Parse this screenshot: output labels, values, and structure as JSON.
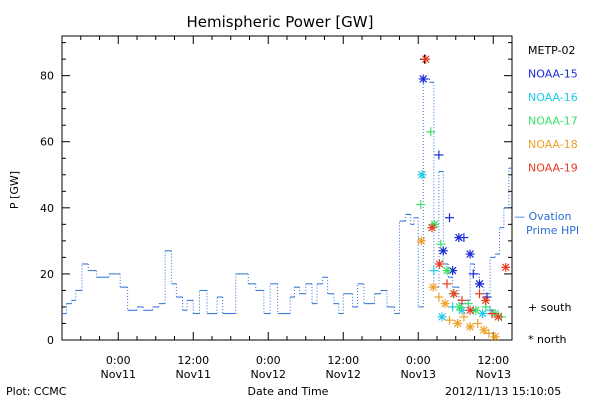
{
  "chart_data": {
    "type": "line",
    "title": "Hemispheric Power [GW]",
    "xlabel": "Date and Time",
    "ylabel": "P [GW]",
    "ylim": [
      0,
      92
    ],
    "xlim_hours_label": "Nov10 19:40 to Nov13 15:10",
    "x_ticks": [
      {
        "hour": 0,
        "line1": "0:00",
        "line2": "Nov11"
      },
      {
        "hour": 12,
        "line1": "12:00",
        "line2": "Nov11"
      },
      {
        "hour": 24,
        "line1": "0:00",
        "line2": "Nov12"
      },
      {
        "hour": 36,
        "line1": "12:00",
        "line2": "Nov12"
      },
      {
        "hour": 48,
        "line1": "0:00",
        "line2": "Nov13"
      },
      {
        "hour": 60,
        "line1": "12:00",
        "line2": "Nov13"
      }
    ],
    "y_ticks": [
      0,
      20,
      40,
      60,
      80
    ],
    "x_min_hour": -9.0,
    "x_max_hour": 63.0,
    "ovation": {
      "name": "Ovation Prime HPI",
      "color": "#2a6fd6",
      "points": [
        [
          -9.0,
          8
        ],
        [
          -8.3,
          11
        ],
        [
          -7.5,
          12
        ],
        [
          -6.8,
          15
        ],
        [
          -5.8,
          23
        ],
        [
          -4.8,
          21
        ],
        [
          -3.5,
          19
        ],
        [
          -1.5,
          20
        ],
        [
          0.3,
          16
        ],
        [
          1.5,
          9
        ],
        [
          3.0,
          10
        ],
        [
          4.0,
          9
        ],
        [
          5.5,
          10
        ],
        [
          6.5,
          11
        ],
        [
          7.5,
          27
        ],
        [
          8.5,
          17
        ],
        [
          9.3,
          13
        ],
        [
          10.3,
          9
        ],
        [
          11.0,
          12
        ],
        [
          12.0,
          8
        ],
        [
          13.0,
          15
        ],
        [
          14.2,
          8
        ],
        [
          15.8,
          13
        ],
        [
          16.7,
          8
        ],
        [
          18.8,
          20
        ],
        [
          20.8,
          17
        ],
        [
          22.0,
          15
        ],
        [
          23.3,
          8
        ],
        [
          24.3,
          17
        ],
        [
          25.5,
          8
        ],
        [
          27.5,
          13
        ],
        [
          28.2,
          16
        ],
        [
          29.0,
          14
        ],
        [
          30.0,
          17
        ],
        [
          31.0,
          11
        ],
        [
          31.8,
          17
        ],
        [
          32.7,
          19
        ],
        [
          33.5,
          14
        ],
        [
          34.5,
          11
        ],
        [
          35.3,
          8
        ],
        [
          36.0,
          14
        ],
        [
          37.5,
          10
        ],
        [
          38.3,
          17
        ],
        [
          39.3,
          11
        ],
        [
          41.0,
          14
        ],
        [
          42.0,
          15
        ],
        [
          43.0,
          10
        ],
        [
          44.2,
          8
        ],
        [
          45.0,
          36
        ],
        [
          46.0,
          38
        ],
        [
          46.8,
          35
        ],
        [
          47.3,
          37
        ],
        [
          48.0,
          10
        ],
        [
          48.8,
          79
        ],
        [
          49.8,
          78
        ],
        [
          50.5,
          16
        ],
        [
          51.3,
          51
        ],
        [
          52.0,
          23
        ],
        [
          52.8,
          19
        ],
        [
          53.5,
          16
        ],
        [
          54.5,
          11
        ],
        [
          55.5,
          12
        ],
        [
          56.3,
          23
        ],
        [
          57.0,
          20
        ],
        [
          57.8,
          17
        ],
        [
          58.5,
          14
        ],
        [
          59.5,
          25
        ],
        [
          60.3,
          26
        ],
        [
          61.0,
          34
        ],
        [
          61.7,
          40
        ],
        [
          62.5,
          52
        ],
        [
          63.0,
          52
        ]
      ]
    },
    "satellites": [
      {
        "name": "METP-02",
        "color": "#000000",
        "points": [
          {
            "h": 49.0,
            "v": 85,
            "m": "+"
          }
        ]
      },
      {
        "name": "NOAA-15",
        "color": "#1a2bd6",
        "points": [
          {
            "h": 48.8,
            "v": 79,
            "m": "*"
          },
          {
            "h": 51.3,
            "v": 56,
            "m": "+"
          },
          {
            "h": 52.0,
            "v": 27,
            "m": "*"
          },
          {
            "h": 53.0,
            "v": 37,
            "m": "+"
          },
          {
            "h": 53.5,
            "v": 21,
            "m": "*"
          },
          {
            "h": 54.5,
            "v": 31,
            "m": "*"
          },
          {
            "h": 55.3,
            "v": 31,
            "m": "+"
          },
          {
            "h": 56.3,
            "v": 26,
            "m": "*"
          },
          {
            "h": 56.8,
            "v": 20,
            "m": "+"
          },
          {
            "h": 57.8,
            "v": 17,
            "m": "*"
          },
          {
            "h": 59.0,
            "v": 13,
            "m": "+"
          }
        ]
      },
      {
        "name": "NOAA-16",
        "color": "#1ec8e6",
        "points": [
          {
            "h": 48.6,
            "v": 50,
            "m": "*"
          },
          {
            "h": 50.5,
            "v": 21,
            "m": "+"
          },
          {
            "h": 51.8,
            "v": 7,
            "m": "*"
          },
          {
            "h": 53.5,
            "v": 10,
            "m": "+"
          },
          {
            "h": 55.0,
            "v": 9,
            "m": "*"
          },
          {
            "h": 56.8,
            "v": 9,
            "m": "+"
          },
          {
            "h": 58.3,
            "v": 8,
            "m": "*"
          },
          {
            "h": 59.5,
            "v": 9,
            "m": "+"
          }
        ]
      },
      {
        "name": "NOAA-17",
        "color": "#3ee06a",
        "points": [
          {
            "h": 48.4,
            "v": 41,
            "m": "+"
          },
          {
            "h": 50.0,
            "v": 63,
            "m": "+"
          },
          {
            "h": 50.6,
            "v": 35,
            "m": "*"
          },
          {
            "h": 51.6,
            "v": 29,
            "m": "+"
          },
          {
            "h": 52.6,
            "v": 21,
            "m": "*"
          },
          {
            "h": 53.6,
            "v": 14,
            "m": "+"
          },
          {
            "h": 54.6,
            "v": 10,
            "m": "*"
          },
          {
            "h": 56.0,
            "v": 11,
            "m": "+"
          },
          {
            "h": 57.2,
            "v": 9,
            "m": "*"
          },
          {
            "h": 58.8,
            "v": 10,
            "m": "+"
          },
          {
            "h": 60.3,
            "v": 8,
            "m": "*"
          },
          {
            "h": 61.3,
            "v": 7,
            "m": "+"
          }
        ]
      },
      {
        "name": "NOAA-18",
        "color": "#f0a028",
        "points": [
          {
            "h": 48.5,
            "v": 30,
            "m": "*"
          },
          {
            "h": 50.4,
            "v": 16,
            "m": "*"
          },
          {
            "h": 51.3,
            "v": 13,
            "m": "+"
          },
          {
            "h": 52.3,
            "v": 11,
            "m": "*"
          },
          {
            "h": 53.0,
            "v": 6,
            "m": "+"
          },
          {
            "h": 54.3,
            "v": 5,
            "m": "*"
          },
          {
            "h": 55.3,
            "v": 7,
            "m": "+"
          },
          {
            "h": 56.3,
            "v": 4,
            "m": "*"
          },
          {
            "h": 57.5,
            "v": 5,
            "m": "+"
          },
          {
            "h": 58.5,
            "v": 3,
            "m": "*"
          },
          {
            "h": 59.3,
            "v": 2,
            "m": "+"
          },
          {
            "h": 60.3,
            "v": 1,
            "m": "*"
          }
        ]
      },
      {
        "name": "NOAA-19",
        "color": "#e63c1e",
        "points": [
          {
            "h": 49.2,
            "v": 85,
            "m": "*"
          },
          {
            "h": 50.2,
            "v": 34,
            "m": "*"
          },
          {
            "h": 51.4,
            "v": 23,
            "m": "*"
          },
          {
            "h": 52.6,
            "v": 17,
            "m": "+"
          },
          {
            "h": 53.7,
            "v": 14,
            "m": "*"
          },
          {
            "h": 55.0,
            "v": 12,
            "m": "+"
          },
          {
            "h": 56.3,
            "v": 9,
            "m": "*"
          },
          {
            "h": 57.8,
            "v": 14,
            "m": "+"
          },
          {
            "h": 58.8,
            "v": 12,
            "m": "*"
          },
          {
            "h": 59.8,
            "v": 8,
            "m": "+"
          },
          {
            "h": 60.8,
            "v": 7,
            "m": "*"
          },
          {
            "h": 62.0,
            "v": 22,
            "m": "*"
          }
        ]
      }
    ]
  },
  "legend": {
    "items": [
      {
        "label": "METP-02",
        "color": "#000000"
      },
      {
        "label": "NOAA-15",
        "color": "#1a2bd6"
      },
      {
        "label": "NOAA-16",
        "color": "#1ec8e6"
      },
      {
        "label": "NOAA-17",
        "color": "#3ee06a"
      },
      {
        "label": "NOAA-18",
        "color": "#f0a028"
      },
      {
        "label": "NOAA-19",
        "color": "#e63c1e"
      }
    ],
    "ovation_line1": "— Ovation",
    "ovation_line2": "Prime HPI",
    "south_label": "+ south",
    "north_label": "* north"
  },
  "footer": {
    "plot_source": "Plot: CCMC",
    "timestamp": "2012/11/13  15:10:05"
  }
}
